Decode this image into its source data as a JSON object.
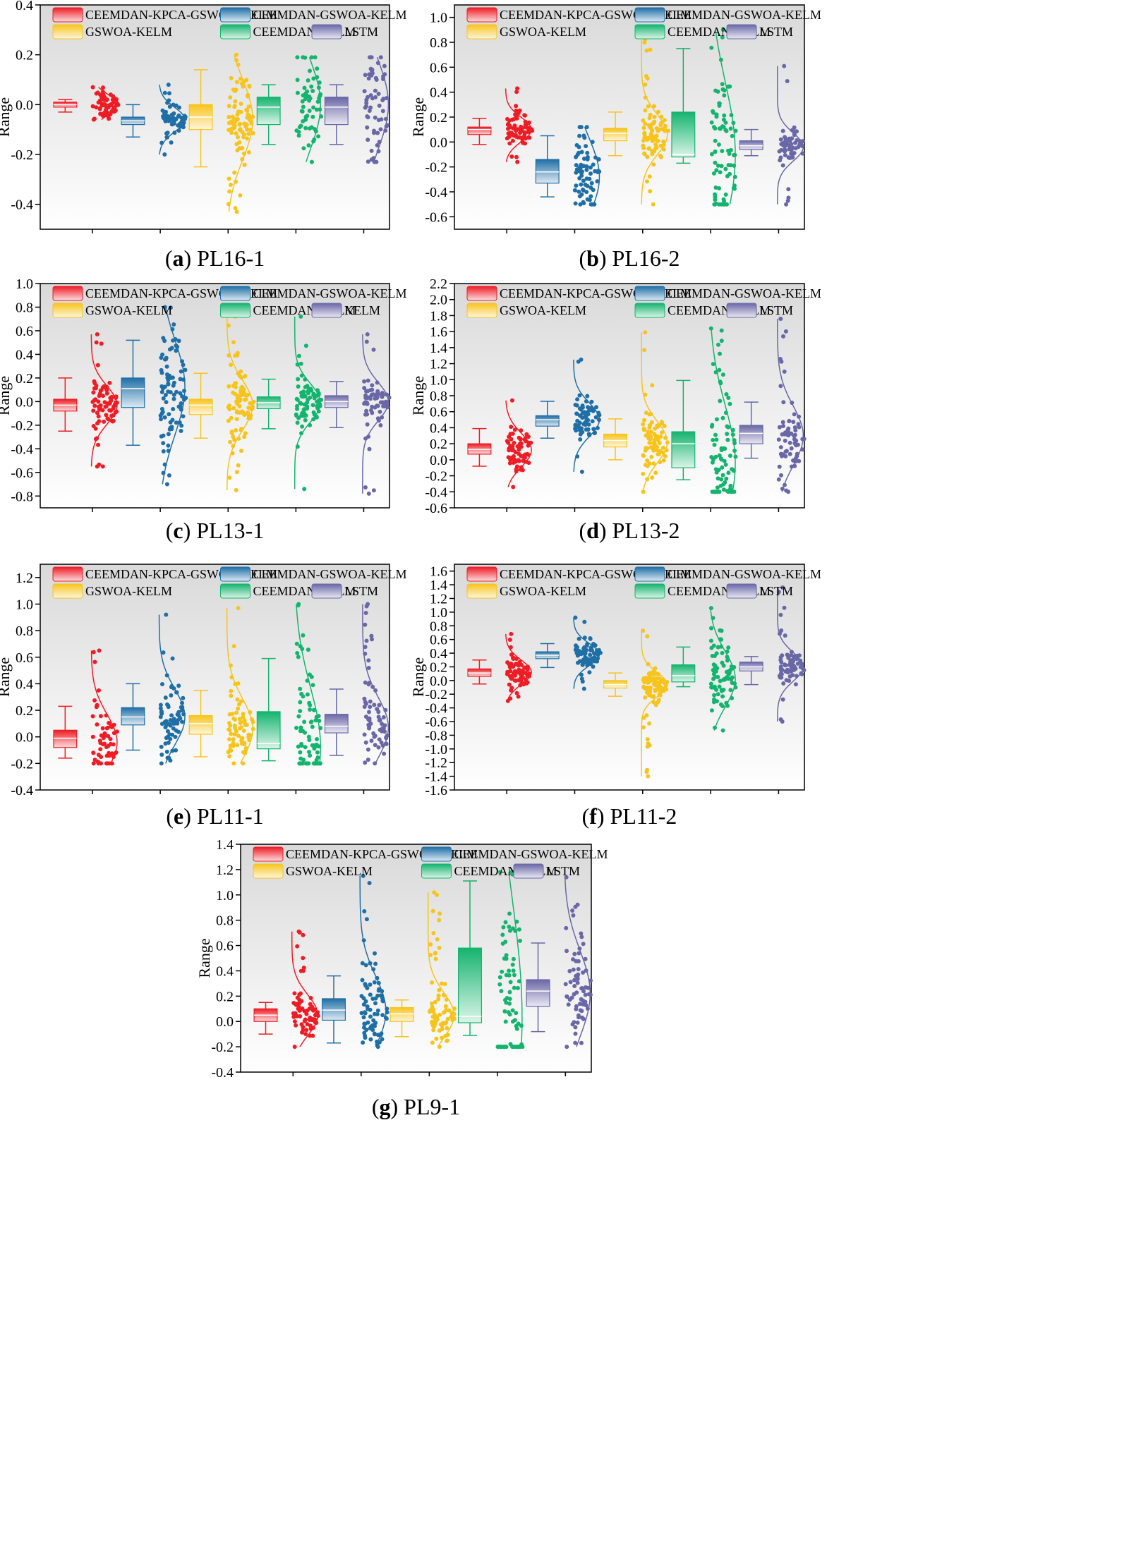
{
  "figure": {
    "colors": {
      "CEEMDAN-KPCA-GSWOA-KELM": "#ee1c25",
      "CEEMDAN-GSWOA-KELM": "#1f6fa6",
      "GSWOA-KELM": "#f7c41c",
      "CEEMDAN-KELM": "#14b46e",
      "LSTM": "#6a67a6",
      "KELM": "#6a67a6"
    }
  },
  "chart_data": [
    {
      "type": "box",
      "caption_letter": "a",
      "caption_text": " PL16-1",
      "ylabel": "Range",
      "ylim": [
        -0.5,
        0.4
      ],
      "yticks": [
        -0.4,
        -0.2,
        0.0,
        0.2,
        0.4
      ],
      "series": [
        {
          "name": "CEEMDAN-KPCA-GSWOA-KELM",
          "q1": -0.01,
          "median": 0.0,
          "q3": 0.01,
          "whisker_low": -0.03,
          "whisker_high": 0.02,
          "points_min": -0.06,
          "points_max": 0.07,
          "points_center": 0.0,
          "n_points": 70
        },
        {
          "name": "CEEMDAN-GSWOA-KELM",
          "q1": -0.08,
          "median": -0.065,
          "q3": -0.05,
          "whisker_low": -0.13,
          "whisker_high": 0.0,
          "points_min": -0.2,
          "points_max": 0.08,
          "points_center": -0.06,
          "n_points": 60
        },
        {
          "name": "GSWOA-KELM",
          "q1": -0.1,
          "median": -0.05,
          "q3": 0.0,
          "whisker_low": -0.25,
          "whisker_high": 0.14,
          "points_min": -0.43,
          "points_max": 0.2,
          "points_center": -0.06,
          "n_points": 90
        },
        {
          "name": "CEEMDAN-KELM",
          "q1": -0.08,
          "median": -0.01,
          "q3": 0.03,
          "whisker_low": -0.16,
          "whisker_high": 0.08,
          "points_min": -0.23,
          "points_max": 0.19,
          "points_center": 0.0,
          "n_points": 60
        },
        {
          "name": "LSTM",
          "q1": -0.08,
          "median": -0.01,
          "q3": 0.03,
          "whisker_low": -0.16,
          "whisker_high": 0.08,
          "points_min": -0.23,
          "points_max": 0.19,
          "points_center": 0.0,
          "n_points": 60
        }
      ]
    },
    {
      "type": "box",
      "caption_letter": "b",
      "caption_text": " PL16-2",
      "ylabel": "Range",
      "ylim": [
        -0.7,
        1.1
      ],
      "yticks": [
        -0.6,
        -0.4,
        -0.2,
        0.0,
        0.2,
        0.4,
        0.6,
        0.8,
        1.0
      ],
      "series": [
        {
          "name": "CEEMDAN-KPCA-GSWOA-KELM",
          "q1": 0.06,
          "median": 0.1,
          "q3": 0.12,
          "whisker_low": -0.02,
          "whisker_high": 0.19,
          "points_min": -0.16,
          "points_max": 0.43,
          "points_center": 0.1,
          "n_points": 70
        },
        {
          "name": "CEEMDAN-GSWOA-KELM",
          "q1": -0.33,
          "median": -0.24,
          "q3": -0.14,
          "whisker_low": -0.44,
          "whisker_high": 0.05,
          "points_min": -0.5,
          "points_max": 0.12,
          "points_center": -0.28,
          "n_points": 70
        },
        {
          "name": "GSWOA-KELM",
          "q1": 0.01,
          "median": 0.07,
          "q3": 0.11,
          "whisker_low": -0.11,
          "whisker_high": 0.24,
          "points_min": -0.5,
          "points_max": 0.82,
          "points_center": 0.06,
          "n_points": 80
        },
        {
          "name": "CEEMDAN-KELM",
          "q1": -0.12,
          "median": -0.1,
          "q3": 0.24,
          "whisker_low": -0.17,
          "whisker_high": 0.75,
          "points_min": -0.5,
          "points_max": 0.9,
          "points_center": -0.1,
          "n_points": 80
        },
        {
          "name": "LSTM",
          "q1": -0.06,
          "median": -0.03,
          "q3": 0.01,
          "whisker_low": -0.11,
          "whisker_high": 0.1,
          "points_min": -0.5,
          "points_max": 0.61,
          "points_center": -0.04,
          "n_points": 60
        }
      ]
    },
    {
      "type": "box",
      "caption_letter": "c",
      "caption_text": " PL13-1",
      "ylabel": "Range",
      "ylim": [
        -0.9,
        1.0
      ],
      "yticks": [
        -0.8,
        -0.6,
        -0.4,
        -0.2,
        0.0,
        0.2,
        0.4,
        0.6,
        0.8,
        1.0
      ],
      "series": [
        {
          "name": "CEEMDAN-KPCA-GSWOA-KELM",
          "q1": -0.08,
          "median": -0.03,
          "q3": 0.02,
          "whisker_low": -0.25,
          "whisker_high": 0.2,
          "points_min": -0.55,
          "points_max": 0.57,
          "points_center": -0.03,
          "n_points": 80
        },
        {
          "name": "CEEMDAN-GSWOA-KELM",
          "q1": -0.05,
          "median": 0.11,
          "q3": 0.2,
          "whisker_low": -0.37,
          "whisker_high": 0.52,
          "points_min": -0.7,
          "points_max": 0.8,
          "points_center": 0.12,
          "n_points": 90
        },
        {
          "name": "GSWOA-KELM",
          "q1": -0.11,
          "median": -0.03,
          "q3": 0.02,
          "whisker_low": -0.31,
          "whisker_high": 0.24,
          "points_min": -0.75,
          "points_max": 0.72,
          "points_center": -0.03,
          "n_points": 90
        },
        {
          "name": "CEEMDAN-KELM",
          "q1": -0.06,
          "median": -0.01,
          "q3": 0.04,
          "whisker_low": -0.23,
          "whisker_high": 0.19,
          "points_min": -0.74,
          "points_max": 0.72,
          "points_center": -0.01,
          "n_points": 80
        },
        {
          "name": "KELM",
          "q1": -0.05,
          "median": 0.0,
          "q3": 0.05,
          "whisker_low": -0.22,
          "whisker_high": 0.17,
          "points_min": -0.78,
          "points_max": 0.57,
          "points_center": 0.0,
          "n_points": 70
        }
      ]
    },
    {
      "type": "box",
      "caption_letter": "d",
      "caption_text": " PL13-2",
      "ylabel": "Range",
      "ylim": [
        -0.6,
        2.2
      ],
      "yticks": [
        -0.6,
        -0.4,
        -0.2,
        0.0,
        0.2,
        0.4,
        0.6,
        0.8,
        1.0,
        1.2,
        1.4,
        1.6,
        1.8,
        2.0,
        2.2
      ],
      "series": [
        {
          "name": "CEEMDAN-KPCA-GSWOA-KELM",
          "q1": 0.07,
          "median": 0.13,
          "q3": 0.2,
          "whisker_low": -0.08,
          "whisker_high": 0.39,
          "points_min": -0.34,
          "points_max": 0.74,
          "points_center": 0.12,
          "n_points": 70
        },
        {
          "name": "CEEMDAN-GSWOA-KELM",
          "q1": 0.42,
          "median": 0.5,
          "q3": 0.55,
          "whisker_low": 0.27,
          "whisker_high": 0.73,
          "points_min": -0.15,
          "points_max": 1.25,
          "points_center": 0.5,
          "n_points": 70
        },
        {
          "name": "GSWOA-KELM",
          "q1": 0.16,
          "median": 0.24,
          "q3": 0.32,
          "whisker_low": 0.0,
          "whisker_high": 0.51,
          "points_min": -0.4,
          "points_max": 1.59,
          "points_center": 0.22,
          "n_points": 80
        },
        {
          "name": "CEEMDAN-KELM",
          "q1": -0.1,
          "median": 0.2,
          "q3": 0.35,
          "whisker_low": -0.25,
          "whisker_high": 0.99,
          "points_min": -0.4,
          "points_max": 1.64,
          "points_center": -0.05,
          "n_points": 80
        },
        {
          "name": "LSTM",
          "q1": 0.2,
          "median": 0.33,
          "q3": 0.43,
          "whisker_low": 0.02,
          "whisker_high": 0.72,
          "points_min": -0.4,
          "points_max": 1.76,
          "points_center": 0.3,
          "n_points": 70
        }
      ]
    },
    {
      "type": "box",
      "caption_letter": "e",
      "caption_text": " PL11-1",
      "ylabel": "Range",
      "ylim": [
        -0.4,
        1.3
      ],
      "yticks": [
        -0.4,
        -0.2,
        0.0,
        0.2,
        0.4,
        0.6,
        0.8,
        1.0,
        1.2
      ],
      "series": [
        {
          "name": "CEEMDAN-KPCA-GSWOA-KELM",
          "q1": -0.08,
          "median": -0.01,
          "q3": 0.05,
          "whisker_low": -0.16,
          "whisker_high": 0.23,
          "points_min": -0.2,
          "points_max": 0.65,
          "points_center": -0.04,
          "n_points": 60
        },
        {
          "name": "CEEMDAN-GSWOA-KELM",
          "q1": 0.09,
          "median": 0.15,
          "q3": 0.22,
          "whisker_low": -0.1,
          "whisker_high": 0.4,
          "points_min": -0.2,
          "points_max": 0.92,
          "points_center": 0.15,
          "n_points": 70
        },
        {
          "name": "GSWOA-KELM",
          "q1": 0.02,
          "median": 0.1,
          "q3": 0.16,
          "whisker_low": -0.15,
          "whisker_high": 0.35,
          "points_min": -0.2,
          "points_max": 0.97,
          "points_center": 0.06,
          "n_points": 70
        },
        {
          "name": "CEEMDAN-KELM",
          "q1": -0.09,
          "median": -0.05,
          "q3": 0.19,
          "whisker_low": -0.18,
          "whisker_high": 0.59,
          "points_min": -0.2,
          "points_max": 1.0,
          "points_center": -0.08,
          "n_points": 80
        },
        {
          "name": "LSTM",
          "q1": 0.03,
          "median": 0.08,
          "q3": 0.17,
          "whisker_low": -0.14,
          "whisker_high": 0.36,
          "points_min": -0.2,
          "points_max": 1.0,
          "points_center": 0.07,
          "n_points": 70
        }
      ]
    },
    {
      "type": "box",
      "caption_letter": "f",
      "caption_text": " PL11-2",
      "ylabel": "Range",
      "ylim": [
        -1.6,
        1.7
      ],
      "yticks": [
        -1.6,
        -1.4,
        -1.2,
        -1.0,
        -0.8,
        -0.6,
        -0.4,
        -0.2,
        0.0,
        0.2,
        0.4,
        0.6,
        0.8,
        1.0,
        1.2,
        1.4,
        1.6
      ],
      "series": [
        {
          "name": "CEEMDAN-KPCA-GSWOA-KELM",
          "q1": 0.06,
          "median": 0.11,
          "q3": 0.17,
          "whisker_low": -0.05,
          "whisker_high": 0.3,
          "points_min": -0.3,
          "points_max": 0.68,
          "points_center": 0.12,
          "n_points": 70
        },
        {
          "name": "CEEMDAN-GSWOA-KELM",
          "q1": 0.32,
          "median": 0.37,
          "q3": 0.42,
          "whisker_low": 0.19,
          "whisker_high": 0.54,
          "points_min": -0.12,
          "points_max": 0.92,
          "points_center": 0.38,
          "n_points": 70
        },
        {
          "name": "GSWOA-KELM",
          "q1": -0.11,
          "median": -0.06,
          "q3": 0.0,
          "whisker_low": -0.23,
          "whisker_high": 0.11,
          "points_min": -1.4,
          "points_max": 0.73,
          "points_center": -0.06,
          "n_points": 90
        },
        {
          "name": "CEEMDAN-KELM",
          "q1": -0.02,
          "median": 0.07,
          "q3": 0.23,
          "whisker_low": -0.09,
          "whisker_high": 0.49,
          "points_min": -0.73,
          "points_max": 1.06,
          "points_center": 0.02,
          "n_points": 80
        },
        {
          "name": "LSTM",
          "q1": 0.14,
          "median": 0.2,
          "q3": 0.27,
          "whisker_low": -0.06,
          "whisker_high": 0.35,
          "points_min": -0.6,
          "points_max": 1.36,
          "points_center": 0.2,
          "n_points": 70
        }
      ]
    },
    {
      "type": "box",
      "caption_letter": "g",
      "caption_text": " PL9-1",
      "ylabel": "Range",
      "ylim": [
        -0.4,
        1.4
      ],
      "yticks": [
        -0.4,
        -0.2,
        0.0,
        0.2,
        0.4,
        0.6,
        0.8,
        1.0,
        1.2,
        1.4
      ],
      "series": [
        {
          "name": "CEEMDAN-KPCA-GSWOA-KELM",
          "q1": 0.0,
          "median": 0.05,
          "q3": 0.1,
          "whisker_low": -0.1,
          "whisker_high": 0.15,
          "points_min": -0.2,
          "points_max": 0.71,
          "points_center": 0.05,
          "n_points": 70
        },
        {
          "name": "CEEMDAN-GSWOA-KELM",
          "q1": 0.01,
          "median": 0.09,
          "q3": 0.18,
          "whisker_low": -0.17,
          "whisker_high": 0.36,
          "points_min": -0.2,
          "points_max": 1.15,
          "points_center": 0.08,
          "n_points": 80
        },
        {
          "name": "GSWOA-KELM",
          "q1": 0.0,
          "median": 0.06,
          "q3": 0.11,
          "whisker_low": -0.12,
          "whisker_high": 0.17,
          "points_min": -0.2,
          "points_max": 1.02,
          "points_center": 0.05,
          "n_points": 80
        },
        {
          "name": "CEEMDAN-KELM",
          "q1": -0.01,
          "median": 0.04,
          "q3": 0.58,
          "whisker_low": -0.11,
          "whisker_high": 1.11,
          "points_min": -0.2,
          "points_max": 1.18,
          "points_center": 0.03,
          "n_points": 80
        },
        {
          "name": "LSTM",
          "q1": 0.12,
          "median": 0.24,
          "q3": 0.33,
          "whisker_low": -0.08,
          "whisker_high": 0.62,
          "points_min": -0.2,
          "points_max": 1.14,
          "points_center": 0.22,
          "n_points": 70
        }
      ]
    }
  ]
}
